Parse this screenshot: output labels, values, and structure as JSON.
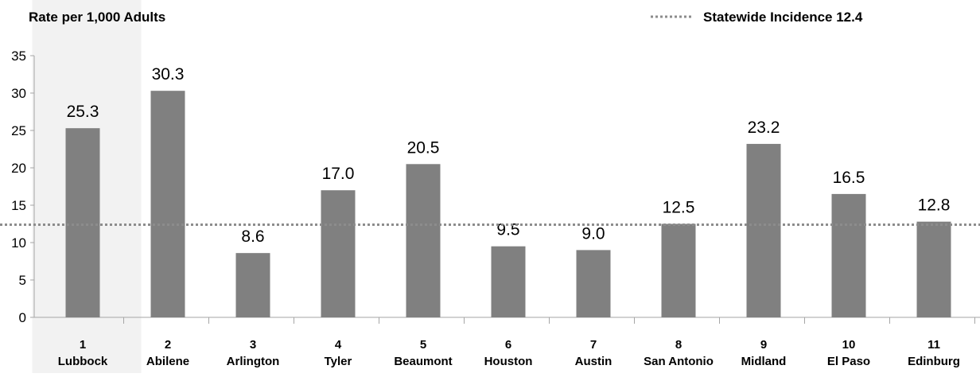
{
  "chart_data": {
    "type": "bar",
    "ylabel": "Rate per 1,000 Adults",
    "xlabel": "",
    "ylim": [
      0,
      35
    ],
    "yticks": [
      0,
      5,
      10,
      15,
      20,
      25,
      30,
      35
    ],
    "categories": [
      {
        "number": "1",
        "name": "Lubbock"
      },
      {
        "number": "2",
        "name": "Abilene"
      },
      {
        "number": "3",
        "name": "Arlington"
      },
      {
        "number": "4",
        "name": "Tyler"
      },
      {
        "number": "5",
        "name": "Beaumont"
      },
      {
        "number": "6",
        "name": "Houston"
      },
      {
        "number": "7",
        "name": "Austin"
      },
      {
        "number": "8",
        "name": "San Antonio"
      },
      {
        "number": "9",
        "name": "Midland"
      },
      {
        "number": "10",
        "name": "El Paso"
      },
      {
        "number": "11",
        "name": "Edinburg"
      }
    ],
    "values": [
      25.3,
      30.3,
      8.6,
      17.0,
      20.5,
      9.5,
      9.0,
      12.5,
      23.2,
      16.5,
      12.8
    ],
    "value_labels": [
      "25.3",
      "30.3",
      "8.6",
      "17.0",
      "20.5",
      "9.5",
      "9.0",
      "12.5",
      "23.2",
      "16.5",
      "12.8"
    ],
    "highlighted_category_index": 0,
    "reference_line": {
      "label": "Statewide Incidence 12.4",
      "value": 12.4,
      "style": "dotted"
    },
    "legend_position": "top-right",
    "grid": false,
    "colors": {
      "bar": "#808080",
      "highlight_band": "#f2f2f2",
      "reference_line": "#8c8c8c",
      "axis": "#a6a6a6"
    }
  }
}
